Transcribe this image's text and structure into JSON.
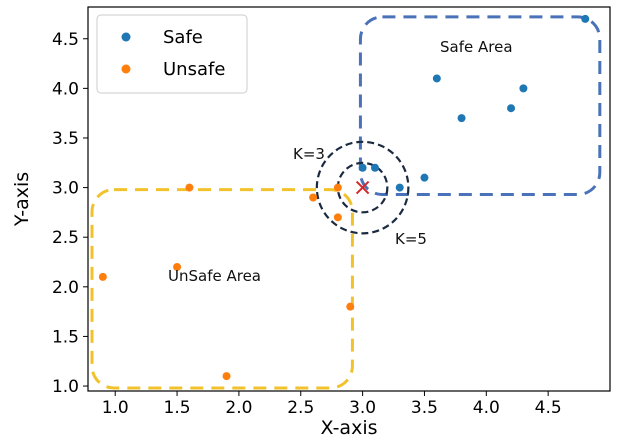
{
  "chart_data": {
    "type": "scatter",
    "xlabel": "X-axis",
    "ylabel": "Y-axis",
    "xlim": [
      0.78,
      5.0
    ],
    "ylim": [
      0.95,
      4.82
    ],
    "xticks": [
      "1.0",
      "1.5",
      "2.0",
      "2.5",
      "3.0",
      "3.5",
      "4.0",
      "4.5"
    ],
    "yticks": [
      "1.0",
      "1.5",
      "2.0",
      "2.5",
      "3.0",
      "3.5",
      "4.0",
      "4.5"
    ],
    "grid": false,
    "legend_position": "top-left",
    "series": [
      {
        "name": "Safe",
        "color": "#1f77b4",
        "points": [
          [
            3.0,
            3.2
          ],
          [
            3.1,
            3.2
          ],
          [
            3.3,
            3.0
          ],
          [
            3.5,
            3.1
          ],
          [
            3.6,
            4.1
          ],
          [
            3.8,
            3.7
          ],
          [
            4.2,
            3.8
          ],
          [
            4.3,
            4.0
          ],
          [
            4.8,
            4.7
          ]
        ]
      },
      {
        "name": "Unsafe",
        "color": "#ff7f0e",
        "points": [
          [
            0.9,
            2.1
          ],
          [
            1.5,
            2.2
          ],
          [
            1.6,
            3.0
          ],
          [
            1.9,
            1.1
          ],
          [
            2.6,
            2.9
          ],
          [
            2.8,
            3.0
          ],
          [
            2.8,
            2.7
          ],
          [
            2.9,
            1.8
          ]
        ]
      }
    ],
    "query_point": {
      "x": 3.0,
      "y": 3.0,
      "marker": "x",
      "color": "#d62728"
    },
    "knn_circles": [
      {
        "label": "K=3",
        "radius": 0.2
      },
      {
        "label": "K=5",
        "radius": 0.37
      }
    ],
    "regions": [
      {
        "label": "Safe Area",
        "color": "#4a72b8",
        "x": [
          2.95,
          4.95
        ],
        "y": [
          2.93,
          4.72
        ]
      },
      {
        "label": "UnSafe Area",
        "color": "#f2c22d",
        "x": [
          0.78,
          2.95
        ],
        "y": [
          0.98,
          2.98
        ]
      }
    ]
  }
}
